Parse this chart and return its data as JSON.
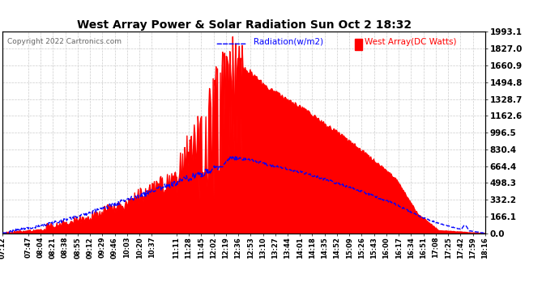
{
  "title": "West Array Power & Solar Radiation Sun Oct 2 18:32",
  "copyright": "Copyright 2022 Cartronics.com",
  "legend_radiation": "Radiation(w/m2)",
  "legend_west": "West Array(DC Watts)",
  "ymax": 1993.1,
  "yticks": [
    0.0,
    166.1,
    332.2,
    498.3,
    664.4,
    830.4,
    996.5,
    1162.6,
    1328.7,
    1494.8,
    1660.9,
    1827.0,
    1993.1
  ],
  "xtick_labels": [
    "07:12",
    "07:47",
    "08:04",
    "08:21",
    "08:38",
    "08:55",
    "09:12",
    "09:29",
    "09:46",
    "10:03",
    "10:20",
    "10:37",
    "11:11",
    "11:28",
    "11:45",
    "12:02",
    "12:19",
    "12:36",
    "12:53",
    "13:10",
    "13:27",
    "13:44",
    "14:01",
    "14:18",
    "14:35",
    "14:52",
    "15:09",
    "15:26",
    "15:43",
    "16:00",
    "16:17",
    "16:34",
    "16:51",
    "17:08",
    "17:25",
    "17:42",
    "17:59",
    "18:16"
  ],
  "bg_color": "#ffffff",
  "plot_bg_color": "#ffffff",
  "grid_color": "#cccccc",
  "title_color": "#000000",
  "radiation_color": "#0000ff",
  "west_array_color": "#ff0000",
  "west_fill_color": "#ff0000"
}
